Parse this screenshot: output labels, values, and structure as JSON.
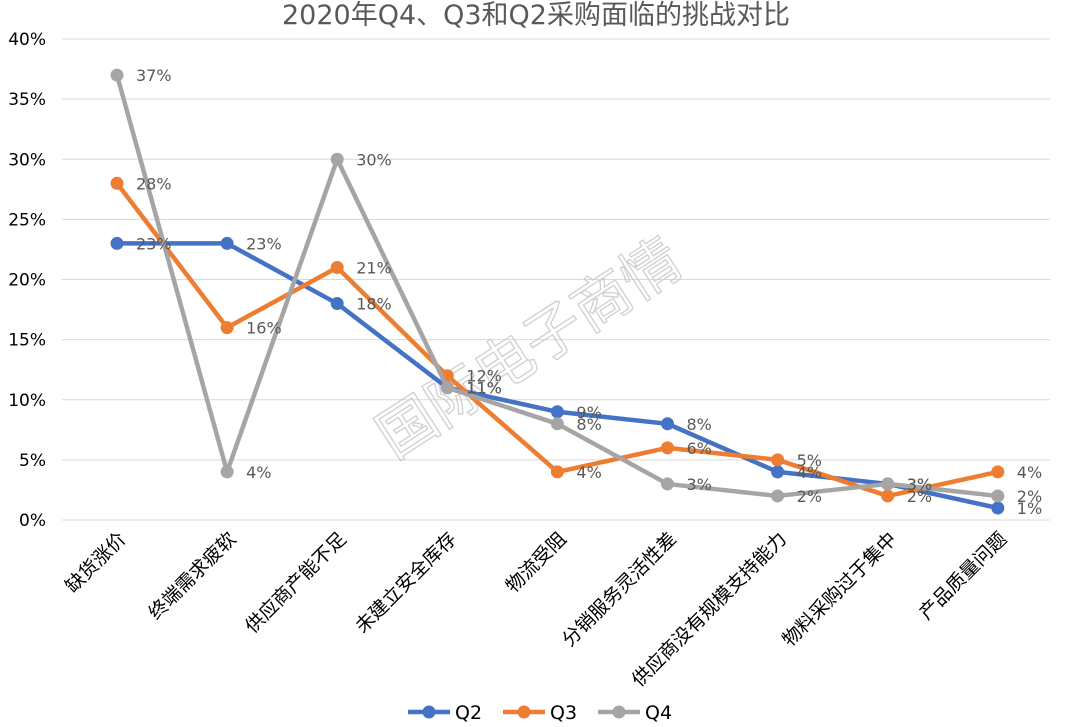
{
  "chart_data": {
    "type": "line",
    "title": "2020年Q4、Q3和Q2采购面临的挑战对比",
    "categories": [
      "缺货涨价",
      "终端需求疲软",
      "供应商产能不足",
      "未建立安全库存",
      "物流受阻",
      "分销服务灵活性差",
      "供应商没有规模支持能力",
      "物料采购过于集中",
      "产品质量问题"
    ],
    "series": [
      {
        "name": "Q2",
        "color": "#4472c4",
        "values": [
          23,
          23,
          18,
          11,
          9,
          8,
          4,
          3,
          1
        ]
      },
      {
        "name": "Q3",
        "color": "#ed7d31",
        "values": [
          28,
          16,
          21,
          12,
          4,
          6,
          5,
          2,
          4
        ]
      },
      {
        "name": "Q4",
        "color": "#a5a5a5",
        "values": [
          37,
          4,
          30,
          11,
          8,
          3,
          2,
          3,
          2
        ]
      }
    ],
    "value_suffix": "%",
    "y_ticks": [
      "0%",
      "5%",
      "10%",
      "15%",
      "20%",
      "25%",
      "30%",
      "35%",
      "40%"
    ],
    "ylim": [
      0,
      40
    ],
    "xlabel": "",
    "ylabel": "",
    "grid": "horizontal",
    "legend_position": "bottom",
    "watermark": "国际电子商情"
  }
}
